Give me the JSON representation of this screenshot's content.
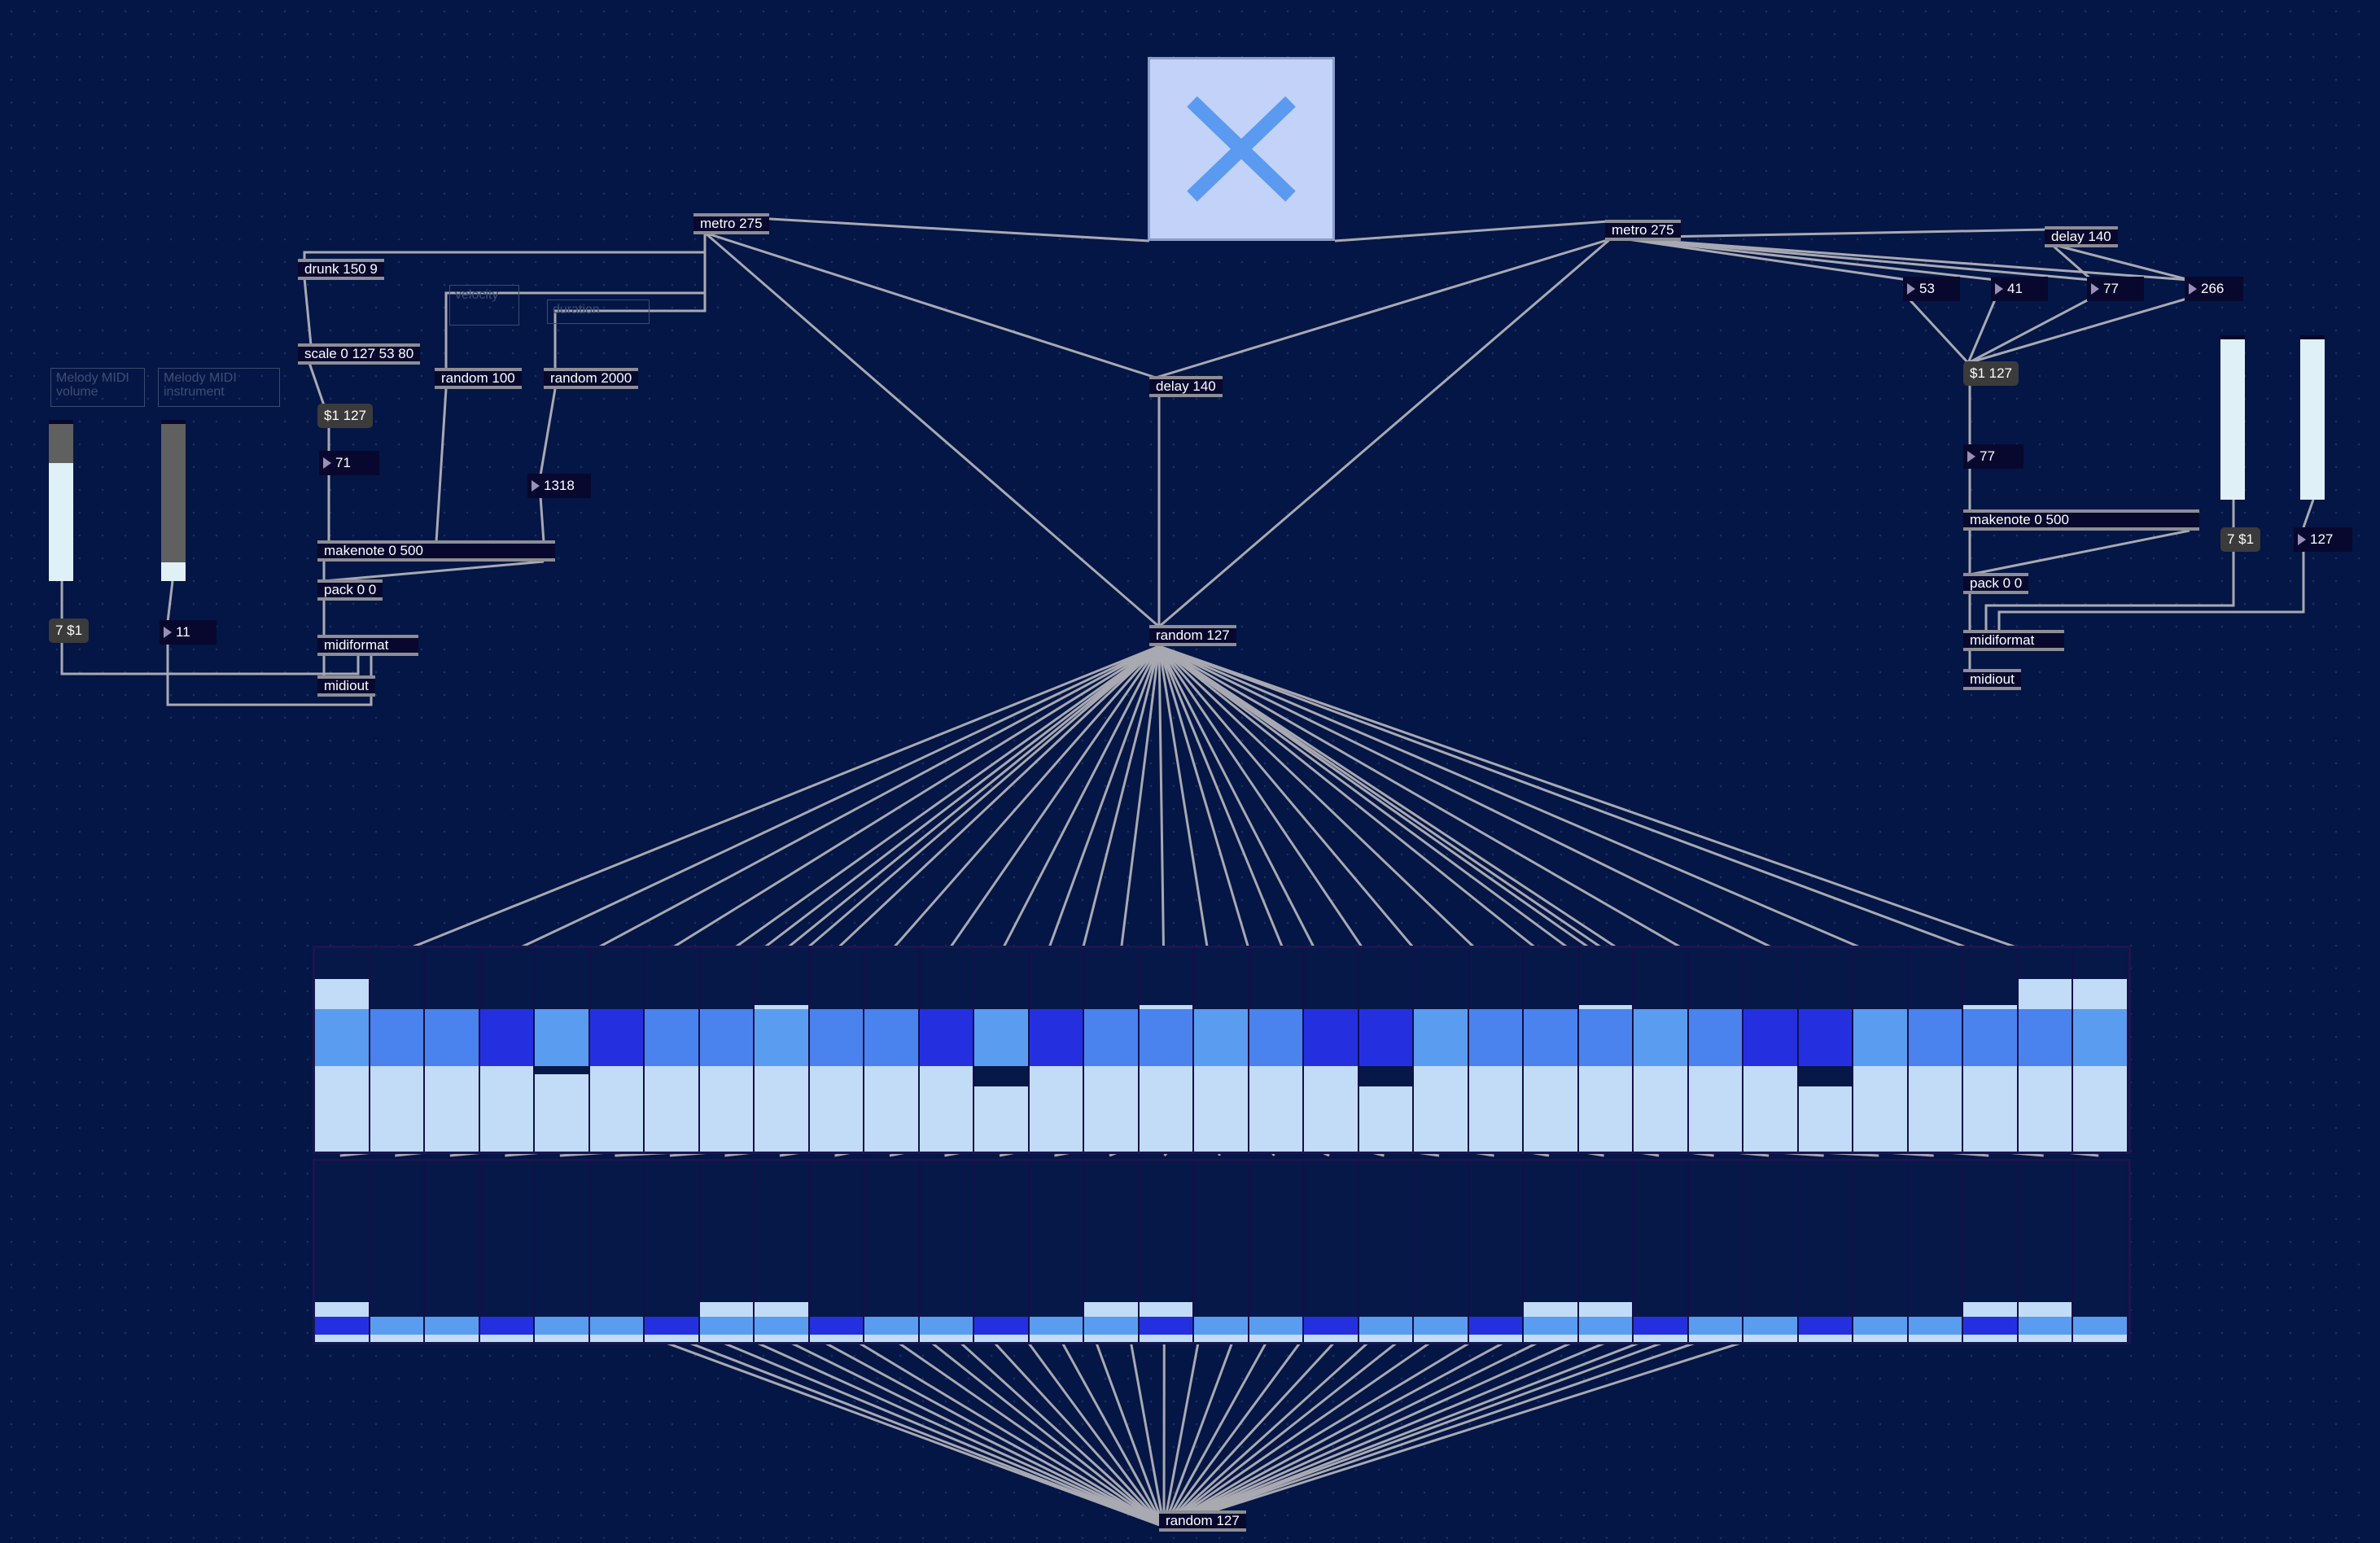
{
  "patch": {
    "toggle": {
      "state": "on",
      "icon": "x-icon"
    },
    "left_metro": "metro 275",
    "right_metro": "metro 275",
    "right_delay": "delay 140",
    "center_delay": "delay 140",
    "center_random": "random 127",
    "bottom_random": "random 127",
    "left": {
      "drunk": "drunk 150 9",
      "scale": "scale 0 127 53 80",
      "random100": "random 100",
      "random2000": "random 2000",
      "msg_vel": "$1 127",
      "num_note": "71",
      "num_dur": "1318",
      "makenote": "makenote 0 500",
      "pack": "pack 0 0",
      "midiformat": "midiformat",
      "midiout": "midiout",
      "comment_velocity": "velocity",
      "comment_duration": "duration",
      "comment_volume": "Melody MIDI volume",
      "comment_instrument": "Melody MIDI instrument",
      "msg_cc7": "7 $1",
      "num_cc11": "11",
      "slider1_level": 0.75,
      "slider2_level": 0.12
    },
    "right": {
      "num_a": "53",
      "num_b": "41",
      "num_c": "77",
      "num_d": "266",
      "msg_vel": "$1 127",
      "num_note": "77",
      "makenote": "makenote 0 500",
      "pack": "pack 0 0",
      "midiformat": "midiformat",
      "midiout": "midiout",
      "msg_cc7": "7 $1",
      "num_cc": "127",
      "slider1_level": 1.0,
      "slider2_level": 1.0
    },
    "colors": {
      "background": "#031645",
      "bar_light": "#c2dcf7",
      "bar_mid": "#5a9df0",
      "bar_dark": "#2430e0",
      "cord": "#a9a9b2"
    },
    "multislider_top": [
      0.15,
      0.3,
      0.4,
      0.52,
      0.62,
      0.57,
      0.48,
      0.36,
      0.28,
      0.34,
      0.44,
      0.57,
      0.68,
      0.57,
      0.48,
      0.28,
      0.38,
      0.44,
      0.57,
      0.68,
      0.57,
      0.48,
      0.36,
      0.28,
      0.34,
      0.44,
      0.57,
      0.68,
      0.57,
      0.4,
      0.28,
      0.15,
      0.15
    ],
    "multislider_bottom": [
      0.78,
      0.86,
      0.86,
      0.86,
      0.86,
      0.86,
      0.86,
      0.78,
      0.78,
      0.86,
      0.86,
      0.86,
      0.86,
      0.86,
      0.78,
      0.78,
      0.86,
      0.86,
      0.86,
      0.86,
      0.86,
      0.86,
      0.78,
      0.78,
      0.86,
      0.86,
      0.86,
      0.86,
      0.86,
      0.86,
      0.78,
      0.78,
      0.86
    ]
  }
}
